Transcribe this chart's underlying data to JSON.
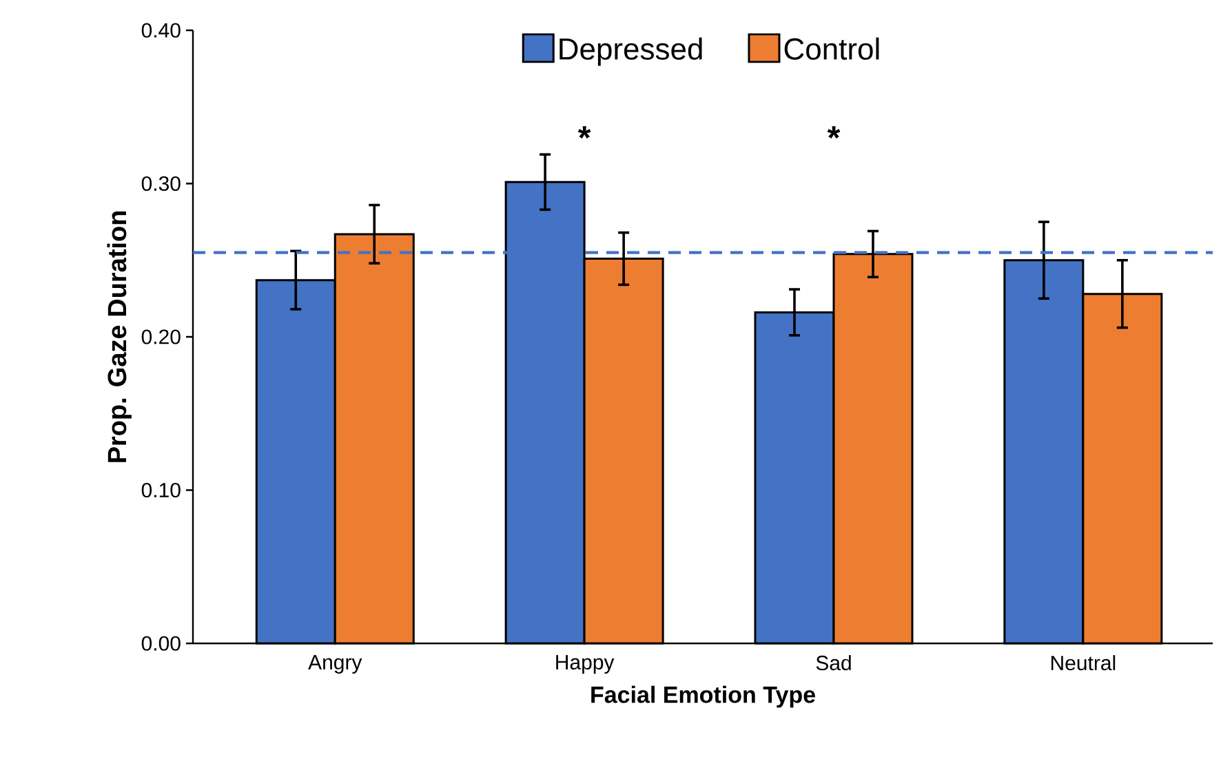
{
  "chart_data": {
    "type": "bar",
    "xlabel": "Facial Emotion Type",
    "ylabel": "Prop. Gaze Duration",
    "categories": [
      "Angry",
      "Happy",
      "Sad",
      "Neutral"
    ],
    "series": [
      {
        "name": "Depressed",
        "color": "#4472c4",
        "values": [
          0.237,
          0.301,
          0.216,
          0.25
        ],
        "errors": [
          0.019,
          0.018,
          0.015,
          0.025
        ]
      },
      {
        "name": "Control",
        "color": "#ed7d31",
        "values": [
          0.267,
          0.251,
          0.254,
          0.228
        ],
        "errors": [
          0.019,
          0.017,
          0.015,
          0.022
        ]
      }
    ],
    "ylim": [
      0,
      0.4
    ],
    "yticks": [
      {
        "value": 0,
        "label": "0.00"
      },
      {
        "value": 0.1,
        "label": "0.10"
      },
      {
        "value": 0.2,
        "label": "0.20"
      },
      {
        "value": 0.3,
        "label": "0.30"
      },
      {
        "value": 0.4,
        "label": "0.40"
      }
    ],
    "ref_lines": [
      {
        "axis": "y",
        "value": 0.255,
        "color": "#4472c4",
        "line_style": "dashed"
      }
    ],
    "annotations": [
      "*",
      "*"
    ],
    "legend": "top",
    "grid": false
  }
}
